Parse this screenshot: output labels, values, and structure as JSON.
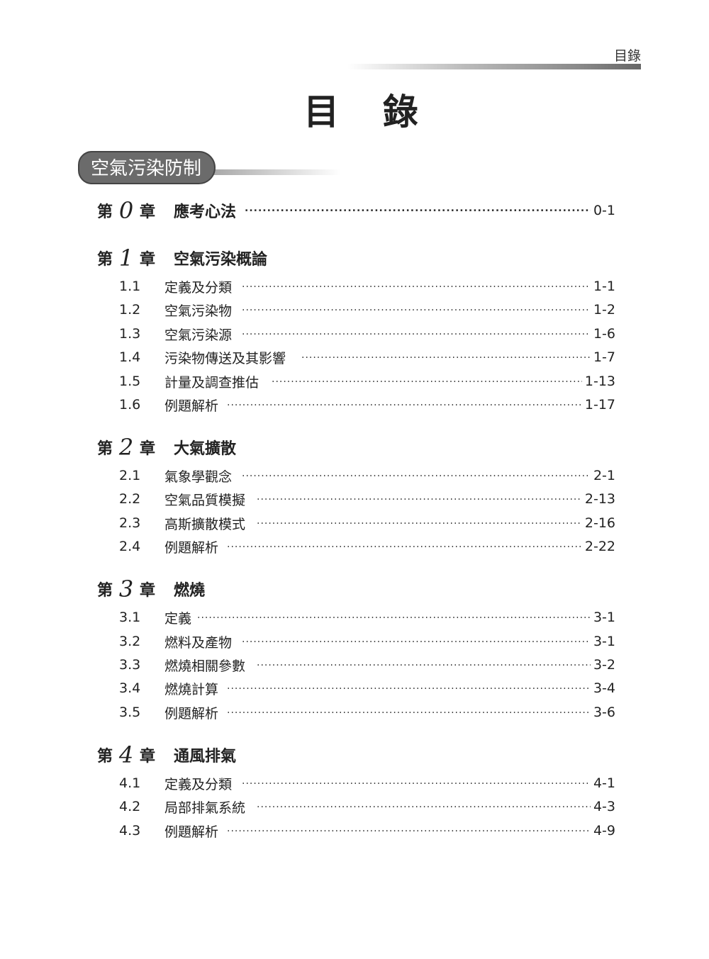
{
  "header": {
    "running_title": "目錄"
  },
  "page_title": "目 錄",
  "part": {
    "title": "空氣污染防制"
  },
  "chapters": [
    {
      "prefix": "第",
      "number": "0",
      "suffix": "章",
      "title": "應考心法",
      "page": "0-1",
      "sections": []
    },
    {
      "prefix": "第",
      "number": "1",
      "suffix": "章",
      "title": "空氣污染概論",
      "page": "",
      "sections": [
        {
          "number": "1.1",
          "title": "定義及分類",
          "page": "1-1"
        },
        {
          "number": "1.2",
          "title": "空氣污染物",
          "page": "1-2"
        },
        {
          "number": "1.3",
          "title": "空氣污染源",
          "page": "1-6"
        },
        {
          "number": "1.4",
          "title": "污染物傳送及其影響",
          "page": "1-7"
        },
        {
          "number": "1.5",
          "title": "計量及調查推估",
          "page": "1-13"
        },
        {
          "number": "1.6",
          "title": "例題解析",
          "page": "1-17"
        }
      ]
    },
    {
      "prefix": "第",
      "number": "2",
      "suffix": "章",
      "title": "大氣擴散",
      "page": "",
      "sections": [
        {
          "number": "2.1",
          "title": "氣象學觀念",
          "page": "2-1"
        },
        {
          "number": "2.2",
          "title": "空氣品質模擬",
          "page": "2-13"
        },
        {
          "number": "2.3",
          "title": "高斯擴散模式",
          "page": "2-16"
        },
        {
          "number": "2.4",
          "title": "例題解析",
          "page": "2-22"
        }
      ]
    },
    {
      "prefix": "第",
      "number": "3",
      "suffix": "章",
      "title": "燃燒",
      "page": "",
      "sections": [
        {
          "number": "3.1",
          "title": "定義",
          "page": "3-1"
        },
        {
          "number": "3.2",
          "title": "燃料及產物",
          "page": "3-1"
        },
        {
          "number": "3.3",
          "title": "燃燒相關參數",
          "page": "3-2"
        },
        {
          "number": "3.4",
          "title": "燃燒計算",
          "page": "3-4"
        },
        {
          "number": "3.5",
          "title": "例題解析",
          "page": "3-6"
        }
      ]
    },
    {
      "prefix": "第",
      "number": "4",
      "suffix": "章",
      "title": "通風排氣",
      "page": "",
      "sections": [
        {
          "number": "4.1",
          "title": "定義及分類",
          "page": "4-1"
        },
        {
          "number": "4.2",
          "title": "局部排氣系統",
          "page": "4-3"
        },
        {
          "number": "4.3",
          "title": "例題解析",
          "page": "4-9"
        }
      ]
    }
  ]
}
